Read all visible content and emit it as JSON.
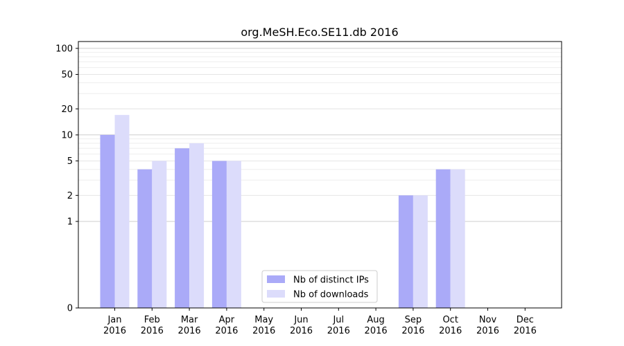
{
  "chart_data": {
    "type": "bar",
    "title": "org.MeSH.Eco.SE11.db 2016",
    "xlabel": "",
    "ylabel": "",
    "y_scale": "symlog",
    "ylim": [
      0,
      120
    ],
    "y_ticks": [
      0,
      1,
      2,
      5,
      10,
      20,
      50,
      100
    ],
    "y_tick_labels": [
      "0",
      "1",
      "2",
      "5",
      "10",
      "20",
      "50",
      "100"
    ],
    "grid": true,
    "legend_position": "bottom-center",
    "categories": [
      {
        "month": "Jan",
        "year": "2016"
      },
      {
        "month": "Feb",
        "year": "2016"
      },
      {
        "month": "Mar",
        "year": "2016"
      },
      {
        "month": "Apr",
        "year": "2016"
      },
      {
        "month": "May",
        "year": "2016"
      },
      {
        "month": "Jun",
        "year": "2016"
      },
      {
        "month": "Jul",
        "year": "2016"
      },
      {
        "month": "Aug",
        "year": "2016"
      },
      {
        "month": "Sep",
        "year": "2016"
      },
      {
        "month": "Oct",
        "year": "2016"
      },
      {
        "month": "Nov",
        "year": "2016"
      },
      {
        "month": "Dec",
        "year": "2016"
      }
    ],
    "series": [
      {
        "name": "Nb of distinct IPs",
        "color": "#aaaaf8",
        "values": [
          10,
          4,
          7,
          5,
          0,
          0,
          0,
          0,
          2,
          4,
          0,
          0
        ]
      },
      {
        "name": "Nb of downloads",
        "color": "#dcdcfb",
        "values": [
          17,
          5,
          8,
          5,
          0,
          0,
          0,
          0,
          2,
          4,
          0,
          0
        ]
      }
    ]
  }
}
